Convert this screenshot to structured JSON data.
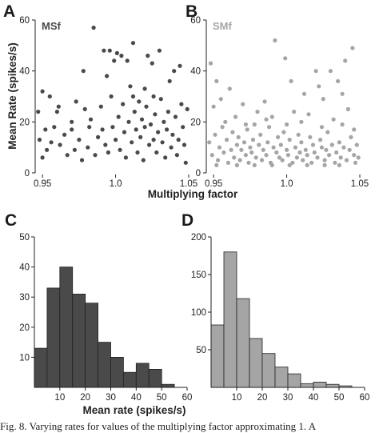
{
  "panel_labels": {
    "a": "A",
    "b": "B",
    "c": "C",
    "d": "D"
  },
  "caption": "Fig. 8. Varying rates for values of the multiplying factor approximating 1. A",
  "colors": {
    "dark": "#4a4a4a",
    "light": "#a5a5a5"
  },
  "chart_data": [
    {
      "panel": "A",
      "type": "scatter",
      "title": "MSf",
      "xlabel": "Multiplying factor",
      "ylabel": "Mean Rate (spikes/s)",
      "xlim": [
        0.945,
        1.05
      ],
      "ylim": [
        0,
        60
      ],
      "xticks": [
        "0.95",
        "1.0",
        "1.05"
      ],
      "yticks": [
        "0",
        "20",
        "40",
        "60"
      ],
      "points": [
        [
          0.985,
          57
        ],
        [
          0.992,
          48
        ],
        [
          0.996,
          48
        ],
        [
          0.999,
          44
        ],
        [
          1.001,
          47
        ],
        [
          1.004,
          46
        ],
        [
          1.008,
          44
        ],
        [
          1.022,
          46
        ],
        [
          1.025,
          43
        ],
        [
          1.03,
          48
        ],
        [
          1.012,
          51
        ],
        [
          0.978,
          40
        ],
        [
          0.973,
          28
        ],
        [
          0.961,
          26
        ],
        [
          0.95,
          32
        ],
        [
          0.947,
          24
        ],
        [
          0.955,
          30
        ],
        [
          0.994,
          38
        ],
        [
          1.01,
          34
        ],
        [
          1.037,
          36
        ],
        [
          1.04,
          40
        ],
        [
          1.044,
          42
        ],
        [
          0.948,
          13
        ],
        [
          0.95,
          6
        ],
        [
          0.952,
          17
        ],
        [
          0.956,
          12
        ],
        [
          0.958,
          18
        ],
        [
          0.962,
          11
        ],
        [
          0.965,
          15
        ],
        [
          0.967,
          7
        ],
        [
          0.97,
          20
        ],
        [
          0.972,
          9
        ],
        [
          0.975,
          13
        ],
        [
          0.977,
          5
        ],
        [
          0.979,
          25
        ],
        [
          0.981,
          10
        ],
        [
          0.983,
          21
        ],
        [
          0.986,
          7
        ],
        [
          0.988,
          14
        ],
        [
          0.99,
          26
        ],
        [
          0.991,
          17
        ],
        [
          0.993,
          11
        ],
        [
          0.995,
          8
        ],
        [
          0.997,
          30
        ],
        [
          0.998,
          18
        ],
        [
          1.0,
          13
        ],
        [
          1.002,
          22
        ],
        [
          1.003,
          9
        ],
        [
          1.005,
          27
        ],
        [
          1.006,
          16
        ],
        [
          1.007,
          6
        ],
        [
          1.009,
          20
        ],
        [
          1.011,
          12
        ],
        [
          1.013,
          24
        ],
        [
          1.014,
          17
        ],
        [
          1.015,
          8
        ],
        [
          1.016,
          28
        ],
        [
          1.017,
          14
        ],
        [
          1.018,
          21
        ],
        [
          1.019,
          5
        ],
        [
          1.02,
          18
        ],
        [
          1.021,
          26
        ],
        [
          1.023,
          11
        ],
        [
          1.024,
          19
        ],
        [
          1.026,
          13
        ],
        [
          1.027,
          23
        ],
        [
          1.028,
          8
        ],
        [
          1.029,
          16
        ],
        [
          1.031,
          29
        ],
        [
          1.032,
          12
        ],
        [
          1.033,
          20
        ],
        [
          1.034,
          6
        ],
        [
          1.035,
          17
        ],
        [
          1.036,
          24
        ],
        [
          1.038,
          10
        ],
        [
          1.039,
          15
        ],
        [
          1.041,
          22
        ],
        [
          1.042,
          7
        ],
        [
          1.043,
          13
        ],
        [
          1.045,
          27
        ],
        [
          1.046,
          18
        ],
        [
          1.047,
          11
        ],
        [
          1.048,
          4
        ],
        [
          1.049,
          25
        ],
        [
          1.012,
          30
        ],
        [
          1.02,
          33
        ],
        [
          1.026,
          30
        ],
        [
          0.982,
          18
        ],
        [
          0.97,
          17
        ],
        [
          0.96,
          24
        ],
        [
          0.953,
          9
        ]
      ]
    },
    {
      "panel": "B",
      "type": "scatter",
      "title": "SMf",
      "xlim": [
        0.945,
        1.05
      ],
      "ylim": [
        0,
        60
      ],
      "xticks": [
        "0.95",
        "1.0",
        "1.05"
      ],
      "yticks": [
        "0",
        "20",
        "40",
        "60"
      ],
      "points": [
        [
          0.948,
          43
        ],
        [
          0.952,
          36
        ],
        [
          0.961,
          33
        ],
        [
          0.955,
          29
        ],
        [
          0.95,
          26
        ],
        [
          0.97,
          27
        ],
        [
          0.985,
          28
        ],
        [
          0.992,
          52
        ],
        [
          0.999,
          45
        ],
        [
          1.003,
          36
        ],
        [
          1.012,
          31
        ],
        [
          1.02,
          40
        ],
        [
          1.022,
          34
        ],
        [
          1.03,
          40
        ],
        [
          1.035,
          36
        ],
        [
          1.038,
          31
        ],
        [
          1.045,
          49
        ],
        [
          1.04,
          44
        ],
        [
          1.025,
          29
        ],
        [
          0.965,
          22
        ],
        [
          0.978,
          19
        ],
        [
          0.98,
          24
        ],
        [
          0.99,
          22
        ],
        [
          1.005,
          24
        ],
        [
          1.015,
          23
        ],
        [
          1.032,
          21
        ],
        [
          1.042,
          25
        ],
        [
          0.947,
          12
        ],
        [
          0.949,
          7
        ],
        [
          0.951,
          15
        ],
        [
          0.953,
          5
        ],
        [
          0.954,
          10
        ],
        [
          0.956,
          18
        ],
        [
          0.957,
          8
        ],
        [
          0.959,
          13
        ],
        [
          0.96,
          4
        ],
        [
          0.962,
          9
        ],
        [
          0.963,
          16
        ],
        [
          0.964,
          6
        ],
        [
          0.966,
          11
        ],
        [
          0.967,
          14
        ],
        [
          0.968,
          5
        ],
        [
          0.969,
          9
        ],
        [
          0.971,
          12
        ],
        [
          0.972,
          7
        ],
        [
          0.973,
          17
        ],
        [
          0.974,
          4
        ],
        [
          0.975,
          10
        ],
        [
          0.976,
          8
        ],
        [
          0.977,
          13
        ],
        [
          0.979,
          6
        ],
        [
          0.981,
          11
        ],
        [
          0.982,
          15
        ],
        [
          0.983,
          5
        ],
        [
          0.984,
          9
        ],
        [
          0.986,
          7
        ],
        [
          0.987,
          12
        ],
        [
          0.988,
          18
        ],
        [
          0.989,
          4
        ],
        [
          0.991,
          10
        ],
        [
          0.993,
          8
        ],
        [
          0.994,
          14
        ],
        [
          0.995,
          6
        ],
        [
          0.996,
          11
        ],
        [
          0.997,
          5
        ],
        [
          0.998,
          16
        ],
        [
          1.0,
          9
        ],
        [
          1.001,
          7
        ],
        [
          1.002,
          13
        ],
        [
          1.004,
          4
        ],
        [
          1.006,
          10
        ],
        [
          1.007,
          6
        ],
        [
          1.008,
          15
        ],
        [
          1.009,
          8
        ],
        [
          1.01,
          12
        ],
        [
          1.011,
          5
        ],
        [
          1.013,
          9
        ],
        [
          1.014,
          7
        ],
        [
          1.016,
          14
        ],
        [
          1.017,
          4
        ],
        [
          1.018,
          11
        ],
        [
          1.019,
          8
        ],
        [
          1.021,
          6
        ],
        [
          1.023,
          13
        ],
        [
          1.024,
          10
        ],
        [
          1.026,
          5
        ],
        [
          1.027,
          9
        ],
        [
          1.028,
          16
        ],
        [
          1.029,
          7
        ],
        [
          1.031,
          11
        ],
        [
          1.033,
          4
        ],
        [
          1.034,
          8
        ],
        [
          1.036,
          12
        ],
        [
          1.037,
          6
        ],
        [
          1.039,
          10
        ],
        [
          1.041,
          5
        ],
        [
          1.043,
          9
        ],
        [
          1.044,
          14
        ],
        [
          1.046,
          7
        ],
        [
          1.047,
          4
        ],
        [
          1.048,
          11
        ],
        [
          1.049,
          6
        ],
        [
          0.958,
          20
        ],
        [
          0.972,
          19
        ],
        [
          0.986,
          21
        ],
        [
          1.0,
          19
        ],
        [
          1.01,
          20
        ],
        [
          1.024,
          18
        ],
        [
          1.038,
          19
        ],
        [
          1.046,
          17
        ],
        [
          0.952,
          3
        ],
        [
          0.966,
          3
        ],
        [
          0.978,
          3
        ],
        [
          0.99,
          3
        ],
        [
          1.002,
          3
        ],
        [
          1.014,
          3
        ],
        [
          1.026,
          3
        ],
        [
          1.036,
          3
        ]
      ]
    },
    {
      "panel": "C",
      "type": "bar",
      "xlabel": "Mean rate (spikes/s)",
      "bin_edges": [
        0,
        5,
        10,
        15,
        20,
        25,
        30,
        35,
        40,
        45,
        50,
        55
      ],
      "values": [
        13,
        33,
        40,
        31,
        28,
        15,
        10,
        5,
        8,
        6,
        1
      ],
      "xlim": [
        0,
        60
      ],
      "ylim": [
        0,
        50
      ],
      "xticks": [
        "10",
        "20",
        "30",
        "40",
        "50",
        "60"
      ],
      "yticks": [
        "10",
        "20",
        "30",
        "40",
        "50"
      ]
    },
    {
      "panel": "D",
      "type": "bar",
      "bin_edges": [
        0,
        5,
        10,
        15,
        20,
        25,
        30,
        35,
        40,
        45,
        50,
        55
      ],
      "values": [
        83,
        180,
        118,
        65,
        45,
        27,
        18,
        5,
        7,
        4,
        2
      ],
      "xlim": [
        0,
        60
      ],
      "ylim": [
        0,
        200
      ],
      "xticks": [
        "10",
        "20",
        "30",
        "40",
        "50",
        "60"
      ],
      "yticks": [
        "50",
        "100",
        "150",
        "200"
      ]
    }
  ]
}
